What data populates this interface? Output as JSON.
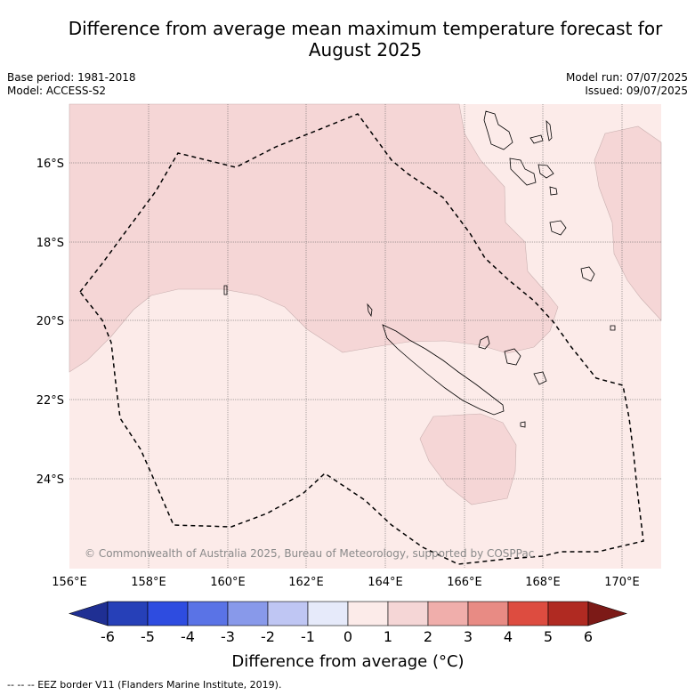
{
  "title_line1": "Difference from average mean maximum temperature forecast for",
  "title_line2": "August 2025",
  "meta_left": {
    "base_period": "Base period: 1981-2018",
    "model": "Model: ACCESS-S2"
  },
  "meta_right": {
    "model_run": "Model run: 07/07/2025",
    "issued": "Issued: 09/07/2025"
  },
  "copyright": "© Commonwealth of Australia 2025, Bureau of Meteorology, supported by COSPPac",
  "lat_labels": [
    "16°S",
    "18°S",
    "20°S",
    "22°S",
    "24°S"
  ],
  "lon_labels": [
    "156°E",
    "158°E",
    "160°E",
    "162°E",
    "164°E",
    "166°E",
    "168°E",
    "170°E"
  ],
  "colorbar": {
    "ticks": [
      "-6",
      "-5",
      "-4",
      "-3",
      "-2",
      "-1",
      "0",
      "1",
      "2",
      "3",
      "4",
      "5",
      "6"
    ],
    "colors": [
      "#1f2f93",
      "#2640b8",
      "#2e4ce0",
      "#5a73e6",
      "#8899ea",
      "#bfc6f3",
      "#e6eafa",
      "#fcebe9",
      "#f5d6d6",
      "#f0aeab",
      "#e88b84",
      "#dd4c40",
      "#b02a22",
      "#7c1a17"
    ],
    "title": "Difference from average (°C)"
  },
  "field_colors": {
    "warm_0_1": "#fcebe9",
    "warm_1_2": "#f5d6d6"
  },
  "footnote": "--  --  -- EEZ border V11 (Flanders Marine Institute, 2019)."
}
